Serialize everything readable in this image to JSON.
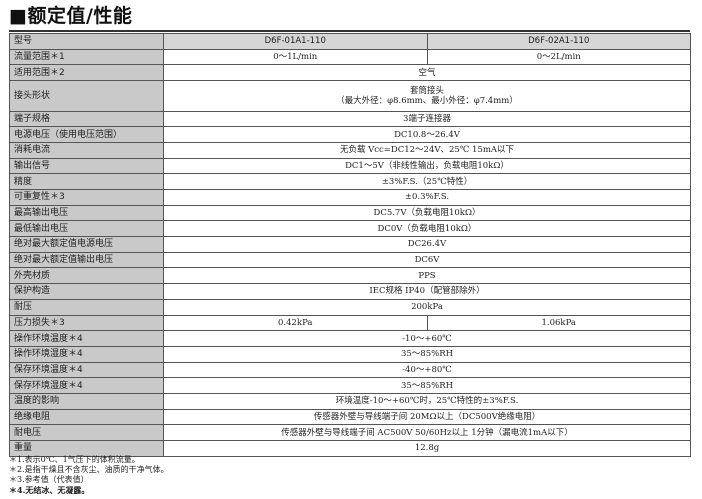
{
  "title": "■额定值/性能",
  "header": {
    "label": "型号",
    "models": [
      "D6F-01A1-110",
      "D6F-02A1-110"
    ]
  },
  "rows": [
    {
      "label": "流量范围＊1",
      "values": [
        "0～1L/min",
        "0～2L/min"
      ]
    },
    {
      "label": "适用范围＊2",
      "value": "空气"
    },
    {
      "label": "接头形状",
      "value": "套筒接头",
      "value2": "（最大外径：φ8.6mm、最小外径：φ7.4mm）"
    },
    {
      "label": "端子规格",
      "value": "3端子连接器"
    },
    {
      "label": "电源电压（使用电压范围）",
      "value": "DC10.8～26.4V"
    },
    {
      "label": "消耗电流",
      "value": "无负载 Vcc=DC12～24V、25℃ 15mA以下"
    },
    {
      "label": "输出信号",
      "value": "DC1～5V（非线性输出，负载电阻10kΩ）"
    },
    {
      "label": "精度",
      "value": "±3%F.S.（25℃特性）"
    },
    {
      "label": "可重复性＊3",
      "value": "±0.3%F.S."
    },
    {
      "label": "最高输出电压",
      "value": "DC5.7V（负载电阻10kΩ）"
    },
    {
      "label": "最低输出电压",
      "value": "DC0V（负载电阻10kΩ）"
    },
    {
      "label": "绝对最大额定值电源电压",
      "value": "DC26.4V"
    },
    {
      "label": "绝对最大额定值输出电压",
      "value": "DC6V"
    },
    {
      "label": "外壳材质",
      "value": "PPS"
    },
    {
      "label": "保护构造",
      "value": "IEC规格 IP40（配管部除外）"
    },
    {
      "label": "耐压",
      "value": "200kPa"
    },
    {
      "label": "压力损失＊3",
      "values": [
        "0.42kPa",
        "1.06kPa"
      ]
    },
    {
      "label": "操作环境温度＊4",
      "value": "-10～+60℃"
    },
    {
      "label": "操作环境湿度＊4",
      "value": "35～85%RH"
    },
    {
      "label": "保存环境温度＊4",
      "value": "-40～+80℃"
    },
    {
      "label": "保存环境湿度＊4",
      "value": "35～85%RH"
    },
    {
      "label": "温度的影响",
      "value": "环境温度-10～+60℃时，25℃特性的±3%F.S."
    },
    {
      "label": "绝缘电阻",
      "value": "传感器外壁与导线端子间 20MΩ以上（DC500V绝缘电阻）"
    },
    {
      "label": "耐电压",
      "value": "传感器外壁与导线端子间 AC500V 50/60Hz以上 1分钟（漏电流1mA以下）"
    },
    {
      "label": "重量",
      "value": "12.8g"
    }
  ],
  "notes": [
    "＊1.表示0℃、1气压下的体积流量。",
    "＊2.是指干燥且不含灰尘、油质的干净气体。",
    "＊3.参考值（代表值）",
    "＊4.无结冰、无凝露。"
  ]
}
